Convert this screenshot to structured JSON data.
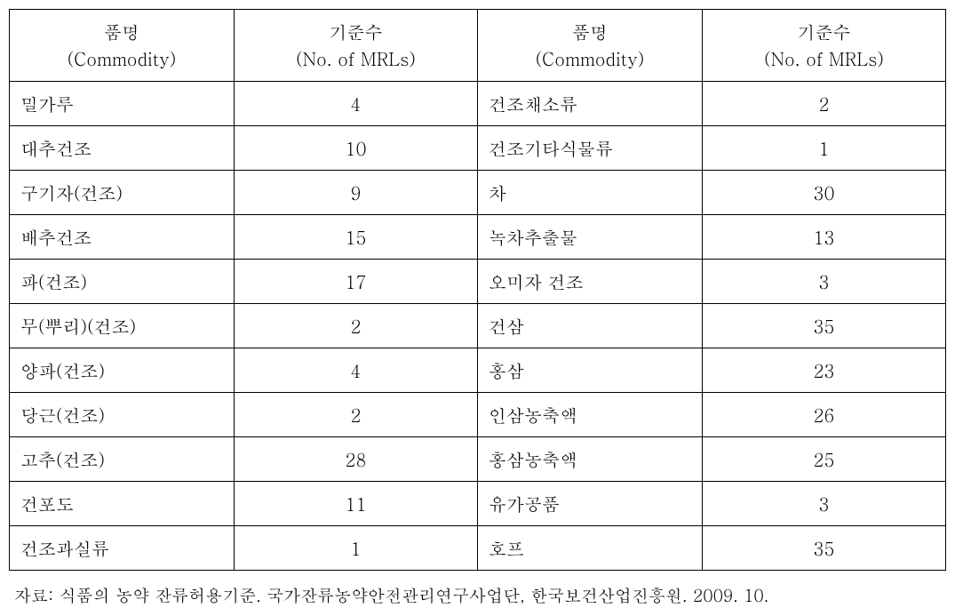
{
  "table": {
    "type": "table",
    "background_color": "#ffffff",
    "border_color": "#000000",
    "text_color": "#000000",
    "font_size": 20,
    "columns": [
      {
        "kr": "품명",
        "en": "(Commodity)",
        "class": "col1"
      },
      {
        "kr": "기준수",
        "en": "(No. of MRLs)",
        "class": "col2"
      },
      {
        "kr": "품명",
        "en": "(Commodity)",
        "class": "col3"
      },
      {
        "kr": "기준수",
        "en": "(No. of MRLs)",
        "class": "col4"
      }
    ],
    "rows": [
      {
        "c1": "밀가루",
        "m1": "4",
        "c2": "건조채소류",
        "m2": "2"
      },
      {
        "c1": "대추건조",
        "m1": "10",
        "c2": "건조기타식물류",
        "m2": "1"
      },
      {
        "c1": "구기자(건조)",
        "m1": "9",
        "c2": "차",
        "m2": "30"
      },
      {
        "c1": "배추건조",
        "m1": "15",
        "c2": "녹차추출물",
        "m2": "13"
      },
      {
        "c1": "파(건조)",
        "m1": "17",
        "c2": "오미자 건조",
        "m2": "3"
      },
      {
        "c1": "무(뿌리)(건조)",
        "m1": "2",
        "c2": "건삼",
        "m2": "35"
      },
      {
        "c1": "양파(건조)",
        "m1": "4",
        "c2": "홍삼",
        "m2": "23"
      },
      {
        "c1": "당근(건조)",
        "m1": "2",
        "c2": "인삼농축액",
        "m2": "26"
      },
      {
        "c1": "고추(건조)",
        "m1": "28",
        "c2": "홍삼농축액",
        "m2": "25"
      },
      {
        "c1": "건포도",
        "m1": "11",
        "c2": "유가공품",
        "m2": "3"
      },
      {
        "c1": "건조과실류",
        "m1": "1",
        "c2": "호프",
        "m2": "35"
      }
    ]
  },
  "footnote": "자료: 식품의 농약 잔류허용기준. 국가잔류농약안전관리연구사업단, 한국보건산업진흥원. 2009. 10."
}
